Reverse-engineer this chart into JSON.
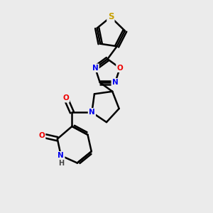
{
  "background_color": "#ebebeb",
  "bond_color": "#000000",
  "bond_width": 1.8,
  "atom_colors": {
    "S": "#c8a000",
    "N": "#0000ee",
    "O": "#ee0000",
    "C": "#000000",
    "H": "#444444"
  },
  "font_size_atom": 7.5,
  "fig_size": [
    3.0,
    3.0
  ],
  "dpi": 100,
  "xlim": [
    0,
    10
  ],
  "ylim": [
    0,
    10
  ]
}
